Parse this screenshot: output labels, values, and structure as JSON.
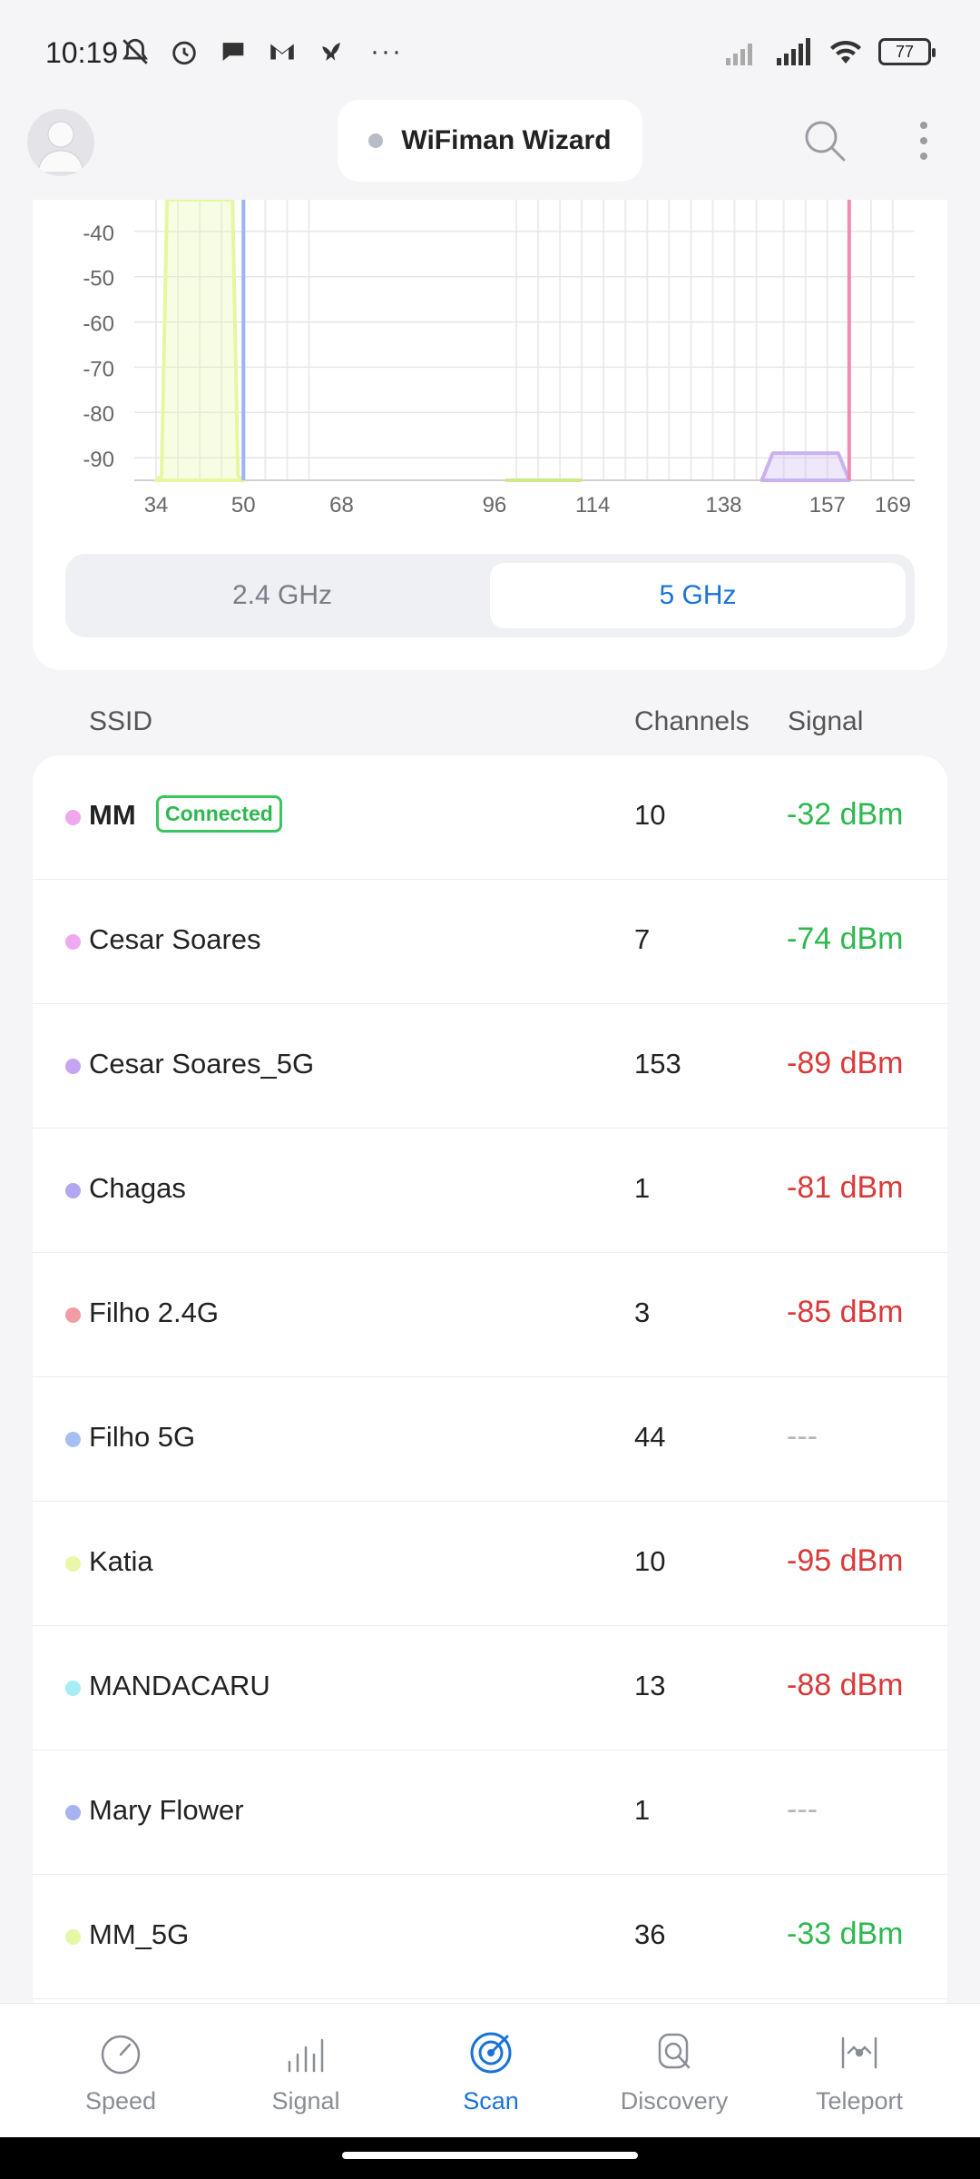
{
  "status_bar": {
    "time": "10:19",
    "left_icons": [
      "muted-bell-icon",
      "alarm-icon",
      "chat-icon",
      "gmail-icon",
      "bird-icon"
    ],
    "more": "···",
    "battery": "77"
  },
  "app_bar": {
    "title": "WiFiman Wizard"
  },
  "chart_data": {
    "type": "area",
    "band": "5 GHz",
    "ylim": [
      -95,
      -33
    ],
    "y_ticks": [
      "-40",
      "-50",
      "-60",
      "-70",
      "-80",
      "-90"
    ],
    "x_ticks": [
      "34",
      "50",
      "68",
      "96",
      "114",
      "138",
      "157",
      "169"
    ],
    "series": [
      {
        "color": "#e4f7a1",
        "x": [
          34,
          35,
          36,
          48,
          49,
          50
        ],
        "y": [
          -95,
          -94,
          -33,
          -33,
          -94,
          -95
        ]
      },
      {
        "color": "#9bb4f4",
        "x": [
          50,
          50
        ],
        "y": [
          -95,
          -33
        ]
      },
      {
        "color": "#cde98c",
        "x": [
          98,
          112
        ],
        "y": [
          -95,
          -95
        ]
      },
      {
        "color": "#c9b2f1",
        "x": [
          145,
          147,
          159,
          161
        ],
        "y": [
          -95,
          -89,
          -89,
          -95
        ]
      },
      {
        "color": "#f08bb1",
        "x": [
          161,
          161
        ],
        "y": [
          -95,
          -33
        ]
      }
    ]
  },
  "band_toggle": {
    "options": [
      "2.4 GHz",
      "5 GHz"
    ],
    "selected": "5 GHz"
  },
  "table": {
    "headers": {
      "ssid": "SSID",
      "channels": "Channels",
      "signal": "Signal"
    },
    "connected_label": "Connected",
    "rows": [
      {
        "ssid": "MM",
        "channel": "10",
        "signal": "-32 dBm",
        "dot_color": "#f1a6ee",
        "status": "good",
        "connected": true
      },
      {
        "ssid": "Cesar Soares",
        "channel": "7",
        "signal": "-74 dBm",
        "dot_color": "#eeaaf0",
        "status": "good"
      },
      {
        "ssid": "Cesar Soares_5G",
        "channel": "153",
        "signal": "-89 dBm",
        "dot_color": "#c6a4f2",
        "status": "bad"
      },
      {
        "ssid": "Chagas",
        "channel": "1",
        "signal": "-81 dBm",
        "dot_color": "#b3a6f2",
        "status": "bad"
      },
      {
        "ssid": "Filho 2.4G",
        "channel": "3",
        "signal": "-85 dBm",
        "dot_color": "#f29ca6",
        "status": "bad"
      },
      {
        "ssid": "Filho 5G",
        "channel": "44",
        "signal": "---",
        "dot_color": "#a6bff2",
        "status": "none"
      },
      {
        "ssid": "Katia",
        "channel": "10",
        "signal": "-95 dBm",
        "dot_color": "#eaf7a6",
        "status": "bad"
      },
      {
        "ssid": "MANDACARU",
        "channel": "13",
        "signal": "-88 dBm",
        "dot_color": "#a6eef4",
        "status": "bad"
      },
      {
        "ssid": "Mary Flower",
        "channel": "1",
        "signal": "---",
        "dot_color": "#a6b2f2",
        "status": "none"
      },
      {
        "ssid": "MM_5G",
        "channel": "36",
        "signal": "-33 dBm",
        "dot_color": "#e4f7a6",
        "status": "good"
      }
    ]
  },
  "bottom_nav": {
    "items": [
      {
        "label": "Speed",
        "icon": "speedometer-icon"
      },
      {
        "label": "Signal",
        "icon": "signal-bars-icon"
      },
      {
        "label": "Scan",
        "icon": "radar-scan-icon"
      },
      {
        "label": "Discovery",
        "icon": "device-discovery-icon"
      },
      {
        "label": "Teleport",
        "icon": "teleport-icon"
      }
    ],
    "active": "Scan"
  }
}
